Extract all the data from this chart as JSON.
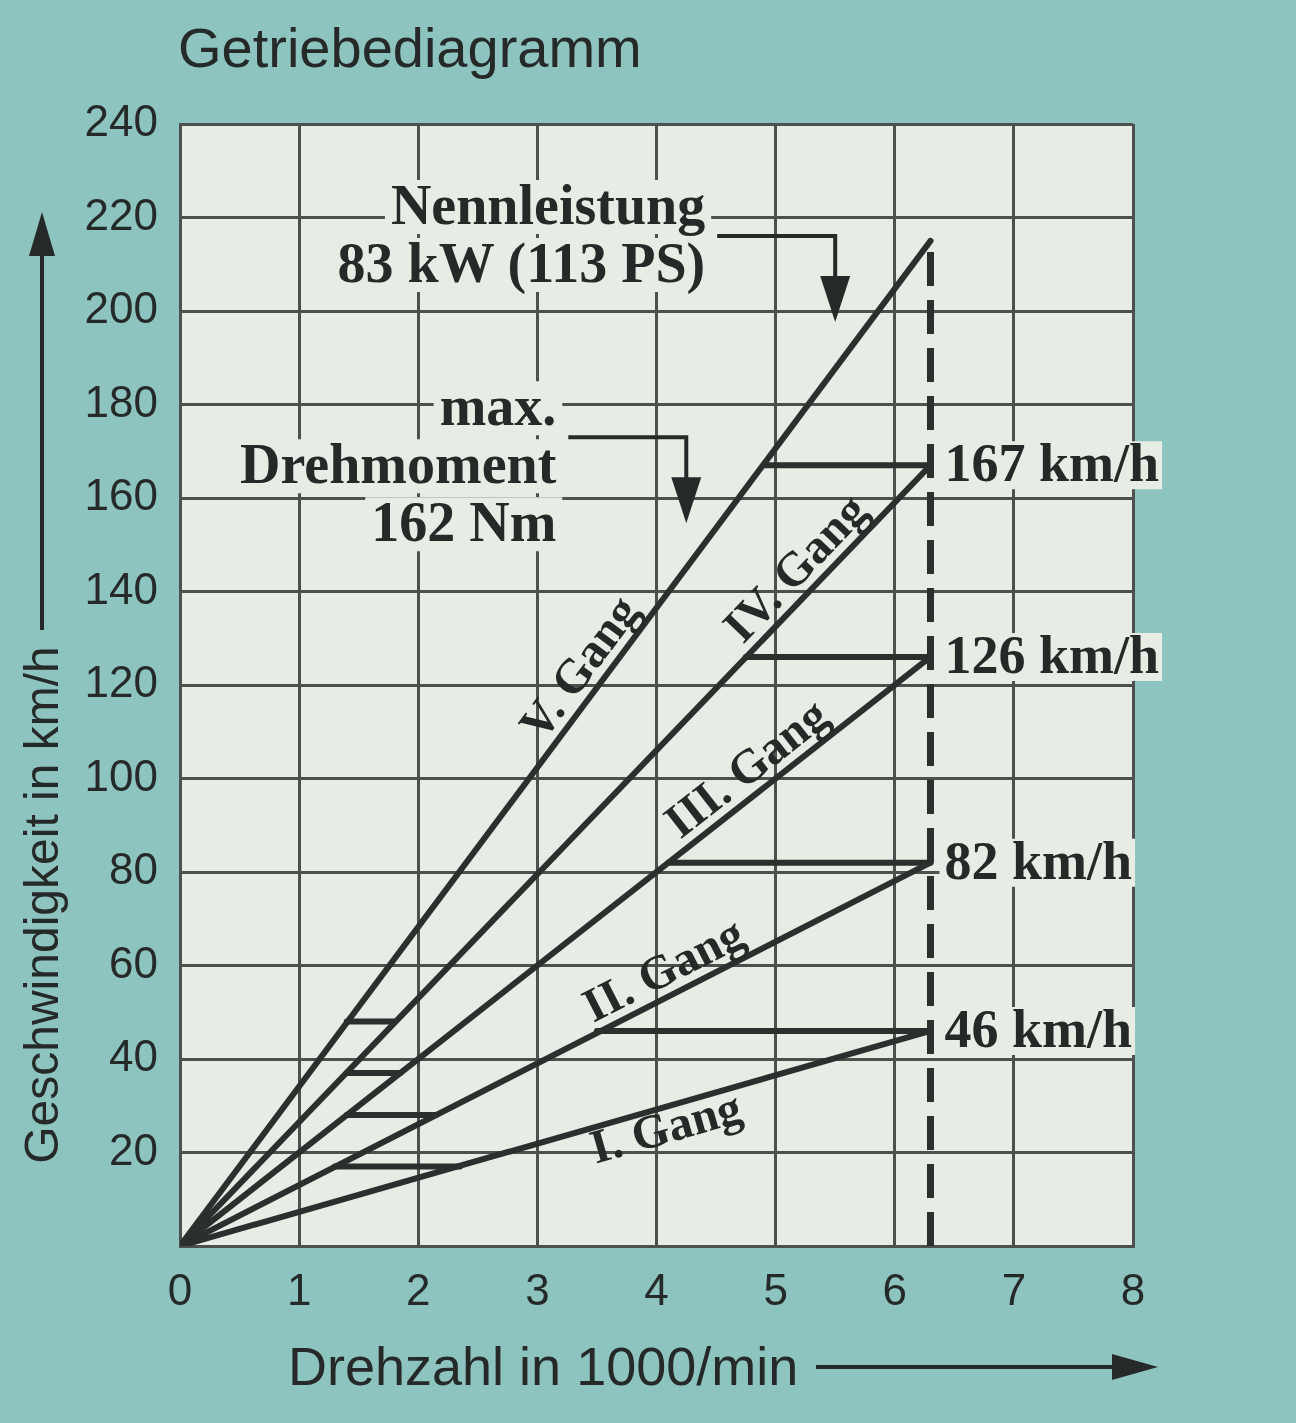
{
  "chart_data": {
    "type": "line",
    "title": "Getriebediagramm",
    "xlabel": "Drehzahl in 1000/min",
    "ylabel": "Geschwindigkeit in km/h",
    "xlim": [
      0,
      8
    ],
    "xticks": [
      0,
      1,
      2,
      3,
      4,
      5,
      6,
      7,
      8
    ],
    "ylim": [
      0,
      240
    ],
    "yticks": [
      20,
      40,
      60,
      80,
      100,
      120,
      140,
      160,
      180,
      200,
      220,
      240
    ],
    "grid": true,
    "series": [
      {
        "name": "V. Gang",
        "color": "#2b2f2d",
        "x": [
          0,
          6.3
        ],
        "values": [
          0,
          215
        ]
      },
      {
        "name": "IV. Gang",
        "color": "#2b2f2d",
        "x": [
          0,
          6.3
        ],
        "values": [
          0,
          167
        ],
        "value_labels": [
          null,
          "167 km/h"
        ]
      },
      {
        "name": "III. Gang",
        "color": "#2b2f2d",
        "x": [
          0,
          6.3
        ],
        "values": [
          0,
          126
        ],
        "value_labels": [
          null,
          "126 km/h"
        ]
      },
      {
        "name": "II. Gang",
        "color": "#2b2f2d",
        "x": [
          0,
          6.3
        ],
        "values": [
          0,
          82
        ],
        "value_labels": [
          null,
          "82 km/h"
        ]
      },
      {
        "name": "I. Gang",
        "color": "#2b2f2d",
        "x": [
          0,
          6.3
        ],
        "values": [
          0,
          46
        ],
        "value_labels": [
          null,
          "46 km/h"
        ]
      },
      {
        "color": "#2b2f2d",
        "x": [
          4.9,
          6.3
        ],
        "values": [
          167,
          167
        ]
      },
      {
        "color": "#2b2f2d",
        "x": [
          4.75,
          6.3
        ],
        "values": [
          126,
          126
        ]
      },
      {
        "color": "#2b2f2d",
        "x": [
          4.1,
          6.3
        ],
        "values": [
          82,
          82
        ]
      },
      {
        "color": "#2b2f2d",
        "x": [
          3.5,
          6.3
        ],
        "values": [
          46,
          46
        ]
      },
      {
        "color": "#2b2f2d",
        "x": [
          1.4,
          1.8
        ],
        "values": [
          48,
          48
        ]
      },
      {
        "color": "#2b2f2d",
        "x": [
          1.4,
          1.85
        ],
        "values": [
          37,
          37
        ]
      },
      {
        "color": "#2b2f2d",
        "x": [
          1.4,
          2.15
        ],
        "values": [
          28,
          28
        ]
      },
      {
        "color": "#2b2f2d",
        "x": [
          1.3,
          2.35
        ],
        "values": [
          17,
          17
        ]
      },
      {
        "color": "#2b2f2d",
        "x": [
          6.3,
          6.3
        ],
        "values": [
          0,
          215
        ],
        "line_style": "dashed"
      }
    ],
    "annotations": [
      {
        "text": "Nennleistung\n83 kW (113 PS)",
        "x": 5.5,
        "y": 188
      },
      {
        "text": "max.\nDrehmoment\n162 Nm",
        "x": 4.25,
        "y": 145
      }
    ]
  }
}
